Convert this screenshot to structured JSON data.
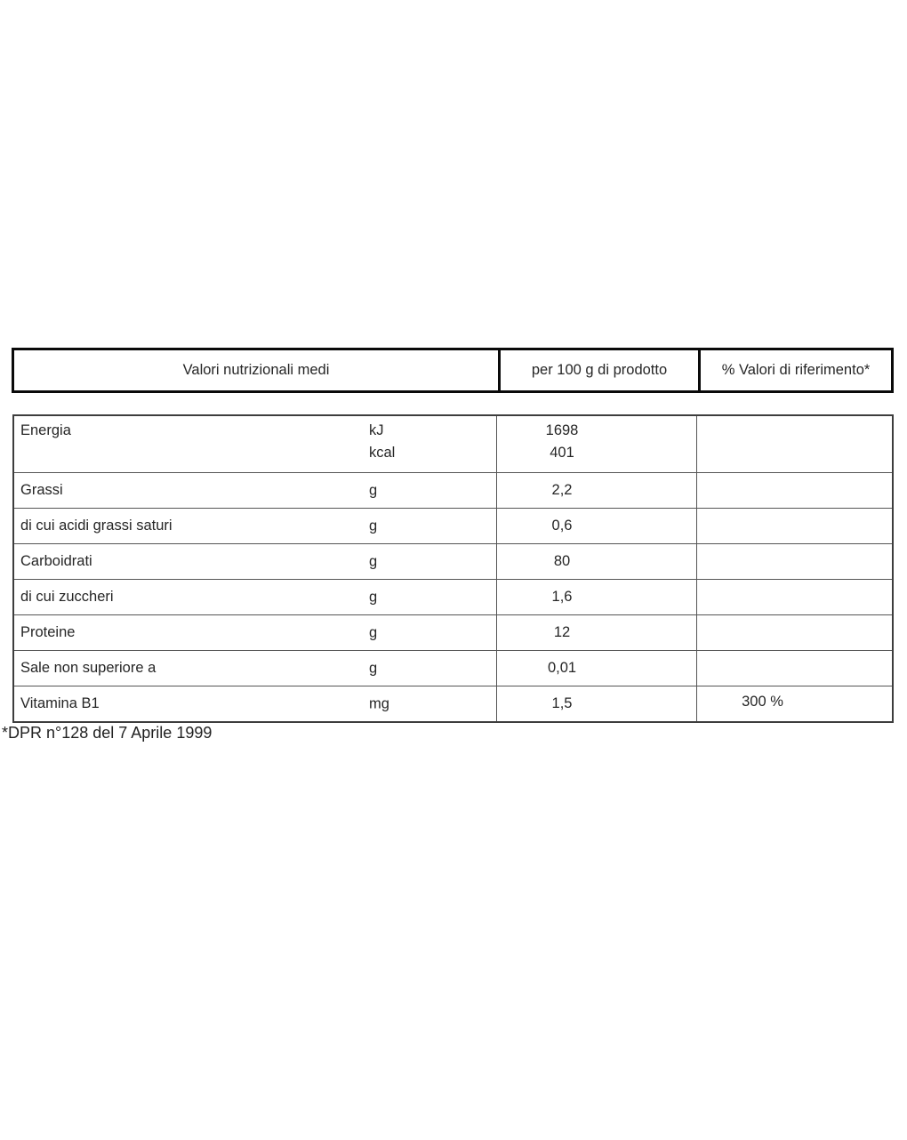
{
  "table": {
    "header": {
      "col1": "Valori nutrizionali medi",
      "col2": "per 100 g di prodotto",
      "col3": "% Valori di riferimento*"
    },
    "rows": [
      {
        "label": "Energia",
        "unit": "kJ\nkcal",
        "value": "1698\n401",
        "ref": ""
      },
      {
        "label": "Grassi",
        "unit": "g",
        "value": "2,2",
        "ref": ""
      },
      {
        "label": "di cui acidi grassi saturi",
        "unit": "g",
        "value": "0,6",
        "ref": ""
      },
      {
        "label": "Carboidrati",
        "unit": "g",
        "value": "80",
        "ref": ""
      },
      {
        "label": "di cui zuccheri",
        "unit": "g",
        "value": "1,6",
        "ref": ""
      },
      {
        "label": "Proteine",
        "unit": "g",
        "value": "12",
        "ref": ""
      },
      {
        "label": "Sale non superiore a",
        "unit": "g",
        "value": "0,01",
        "ref": ""
      },
      {
        "label": "Vitamina B1",
        "unit": "mg",
        "value": "1,5",
        "ref": "300 %"
      }
    ]
  },
  "footnote": "*DPR n°128 del 7 Aprile 1999"
}
